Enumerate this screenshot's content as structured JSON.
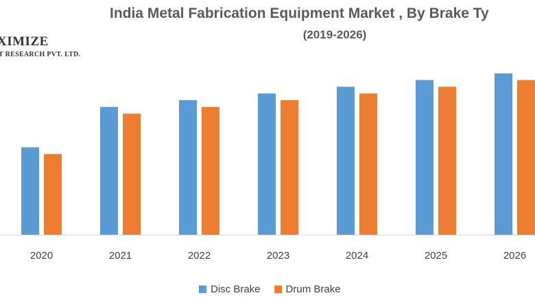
{
  "logo": {
    "main": "XIMIZE",
    "sub": "T RESEARCH PVT. LTD."
  },
  "chart_data": {
    "type": "bar",
    "title": "India Metal Fabrication Equipment Market , By Brake Ty",
    "subtitle": "(2019-2026)",
    "xlabel": "",
    "ylabel": "",
    "categories": [
      "2020",
      "2021",
      "2022",
      "2023",
      "2024",
      "2025",
      "2026"
    ],
    "series": [
      {
        "name": "Disc Brake",
        "color": "#5b9bd5",
        "values": [
          26,
          38,
          40,
          42,
          44,
          46,
          48
        ]
      },
      {
        "name": "Drum Brake",
        "color": "#ed7d31",
        "values": [
          24,
          36,
          38,
          40,
          42,
          44,
          46
        ]
      }
    ],
    "ylim": [
      0,
      50
    ],
    "grid": false,
    "legend": "bottom"
  }
}
